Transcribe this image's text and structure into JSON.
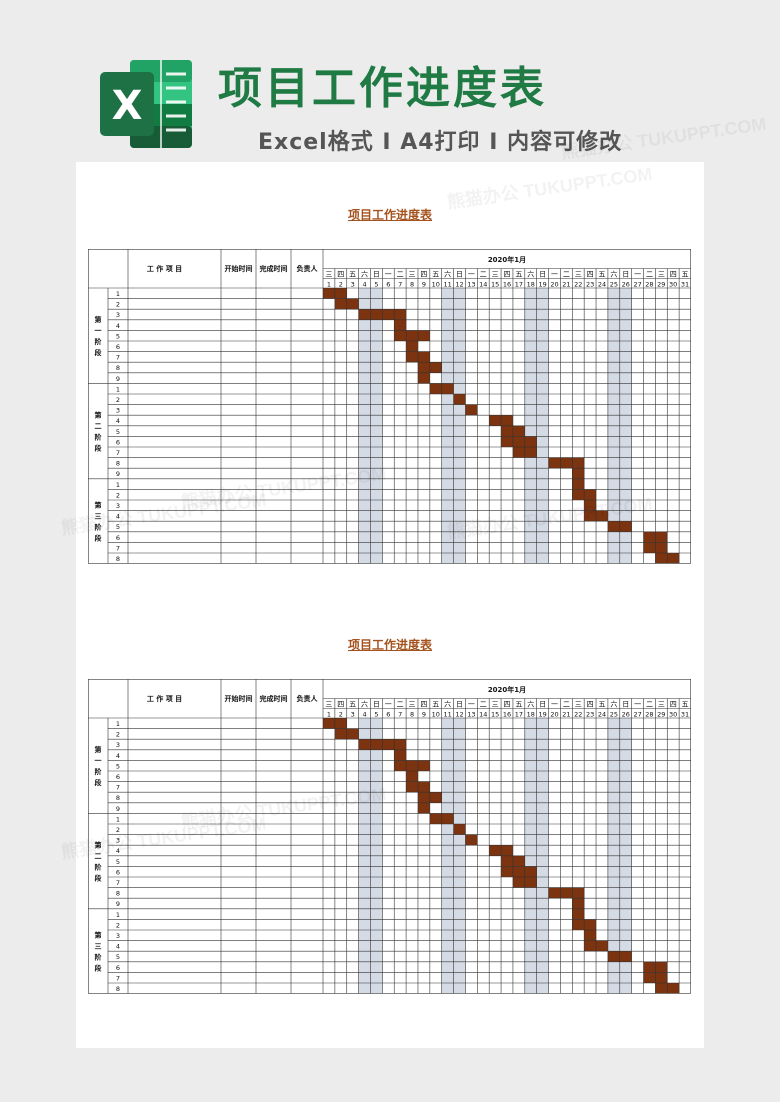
{
  "header": {
    "title": "项目工作进度表",
    "subtitle": "Excel格式 I A4打印 I 内容可修改",
    "logo_letter": "X"
  },
  "watermark": "熊猫办公 TUKUPPT.COM",
  "colors": {
    "title_green": "#1f7a44",
    "logo_dark": "#1e7145",
    "logo_mid": "#21a366",
    "logo_light": "#33c481",
    "bar": "#7b3310",
    "weekend": "#d5dbe5",
    "sheet_title": "#a5531e"
  },
  "sheets": [
    {
      "title": "项目工作进度表",
      "month_label": "2020年1月",
      "col_item": "工 作 项 目",
      "col_start": "开始时间",
      "col_end": "完成时间",
      "col_owner": "负责人",
      "weekdays": [
        "三",
        "四",
        "五",
        "六",
        "日",
        "一",
        "二",
        "三",
        "四",
        "五",
        "六",
        "日",
        "一",
        "二",
        "三",
        "四",
        "五",
        "六",
        "日",
        "一",
        "二",
        "三",
        "四",
        "五",
        "六",
        "日",
        "一",
        "二",
        "三",
        "四",
        "五"
      ],
      "days": [
        "1",
        "2",
        "3",
        "4",
        "5",
        "6",
        "7",
        "8",
        "9",
        "10",
        "11",
        "12",
        "13",
        "14",
        "15",
        "16",
        "17",
        "18",
        "19",
        "20",
        "21",
        "22",
        "23",
        "24",
        "25",
        "26",
        "27",
        "28",
        "29",
        "30",
        "31"
      ],
      "weekend_days": [
        4,
        5,
        11,
        12,
        18,
        19,
        25,
        26
      ],
      "phases": [
        {
          "label": "第一阶段",
          "rows": [
            {
              "no": "1",
              "start": 1,
              "end": 2
            },
            {
              "no": "2",
              "start": 2,
              "end": 3
            },
            {
              "no": "3",
              "start": 4,
              "end": 7
            },
            {
              "no": "4",
              "start": 7,
              "end": 7
            },
            {
              "no": "5",
              "start": 7,
              "end": 9
            },
            {
              "no": "6",
              "start": 8,
              "end": 8
            },
            {
              "no": "7",
              "start": 8,
              "end": 9
            },
            {
              "no": "8",
              "start": 9,
              "end": 10
            },
            {
              "no": "9",
              "start": 9,
              "end": 9
            }
          ]
        },
        {
          "label": "第二阶段",
          "rows": [
            {
              "no": "1",
              "start": 10,
              "end": 11
            },
            {
              "no": "2",
              "start": 12,
              "end": 12
            },
            {
              "no": "3",
              "start": 13,
              "end": 13
            },
            {
              "no": "4",
              "start": 15,
              "end": 16
            },
            {
              "no": "5",
              "start": 16,
              "end": 17
            },
            {
              "no": "6",
              "start": 16,
              "end": 18
            },
            {
              "no": "7",
              "start": 17,
              "end": 18
            },
            {
              "no": "8",
              "start": 20,
              "end": 22
            },
            {
              "no": "9",
              "start": 22,
              "end": 22
            }
          ]
        },
        {
          "label": "第三阶段",
          "rows": [
            {
              "no": "1",
              "start": 22,
              "end": 22
            },
            {
              "no": "2",
              "start": 22,
              "end": 23
            },
            {
              "no": "3",
              "start": 23,
              "end": 23
            },
            {
              "no": "4",
              "start": 23,
              "end": 24
            },
            {
              "no": "5",
              "start": 25,
              "end": 26
            },
            {
              "no": "6",
              "start": 28,
              "end": 29
            },
            {
              "no": "7",
              "start": 28,
              "end": 29
            },
            {
              "no": "8",
              "start": 29,
              "end": 30
            }
          ]
        }
      ]
    },
    {
      "title": "项目工作进度表",
      "month_label": "2020年1月",
      "col_item": "工 作 项 目",
      "col_start": "开始时间",
      "col_end": "完成时间",
      "col_owner": "负责人",
      "weekdays": [
        "三",
        "四",
        "五",
        "六",
        "日",
        "一",
        "二",
        "三",
        "四",
        "五",
        "六",
        "日",
        "一",
        "二",
        "三",
        "四",
        "五",
        "六",
        "日",
        "一",
        "二",
        "三",
        "四",
        "五",
        "六",
        "日",
        "一",
        "二",
        "三",
        "四",
        "五"
      ],
      "days": [
        "1",
        "2",
        "3",
        "4",
        "5",
        "6",
        "7",
        "8",
        "9",
        "10",
        "11",
        "12",
        "13",
        "14",
        "15",
        "16",
        "17",
        "18",
        "19",
        "20",
        "21",
        "22",
        "23",
        "24",
        "25",
        "26",
        "27",
        "28",
        "29",
        "30",
        "31"
      ],
      "weekend_days": [
        4,
        5,
        11,
        12,
        18,
        19,
        25,
        26
      ],
      "phases": [
        {
          "label": "第一阶段",
          "rows": [
            {
              "no": "1",
              "start": 1,
              "end": 2
            },
            {
              "no": "2",
              "start": 2,
              "end": 3
            },
            {
              "no": "3",
              "start": 4,
              "end": 7
            },
            {
              "no": "4",
              "start": 7,
              "end": 7
            },
            {
              "no": "5",
              "start": 7,
              "end": 9
            },
            {
              "no": "6",
              "start": 8,
              "end": 8
            },
            {
              "no": "7",
              "start": 8,
              "end": 9
            },
            {
              "no": "8",
              "start": 9,
              "end": 10
            },
            {
              "no": "9",
              "start": 9,
              "end": 9
            }
          ]
        },
        {
          "label": "第二阶段",
          "rows": [
            {
              "no": "1",
              "start": 10,
              "end": 11
            },
            {
              "no": "2",
              "start": 12,
              "end": 12
            },
            {
              "no": "3",
              "start": 13,
              "end": 13
            },
            {
              "no": "4",
              "start": 15,
              "end": 16
            },
            {
              "no": "5",
              "start": 16,
              "end": 17
            },
            {
              "no": "6",
              "start": 16,
              "end": 18
            },
            {
              "no": "7",
              "start": 17,
              "end": 18
            },
            {
              "no": "8",
              "start": 20,
              "end": 22
            },
            {
              "no": "9",
              "start": 22,
              "end": 22
            }
          ]
        },
        {
          "label": "第三阶段",
          "rows": [
            {
              "no": "1",
              "start": 22,
              "end": 22
            },
            {
              "no": "2",
              "start": 22,
              "end": 23
            },
            {
              "no": "3",
              "start": 23,
              "end": 23
            },
            {
              "no": "4",
              "start": 23,
              "end": 24
            },
            {
              "no": "5",
              "start": 25,
              "end": 26
            },
            {
              "no": "6",
              "start": 28,
              "end": 29
            },
            {
              "no": "7",
              "start": 28,
              "end": 29
            },
            {
              "no": "8",
              "start": 29,
              "end": 30
            }
          ]
        }
      ]
    }
  ]
}
